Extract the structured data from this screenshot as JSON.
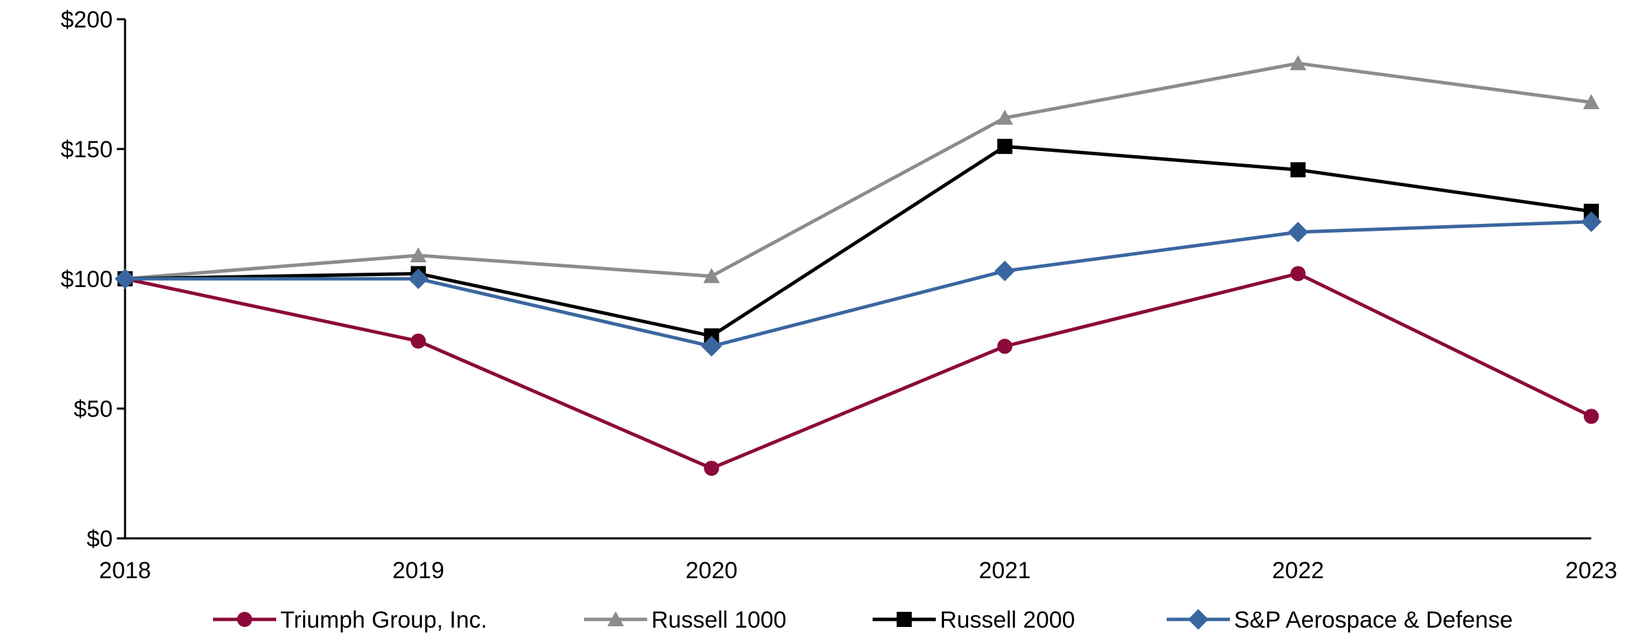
{
  "chart_data": {
    "type": "line",
    "title": "",
    "xlabel": "",
    "ylabel": "",
    "categories": [
      "2018",
      "2019",
      "2020",
      "2021",
      "2022",
      "2023"
    ],
    "ylim": [
      0,
      200
    ],
    "yticks": [
      0,
      50,
      100,
      150,
      200
    ],
    "ytick_labels": [
      "$0",
      "$50",
      "$100",
      "$150",
      "$200"
    ],
    "grid": false,
    "legend_position": "bottom",
    "series": [
      {
        "name": "Triumph Group, Inc.",
        "color": "#8B0A3A",
        "marker": "circle",
        "values": [
          100,
          76,
          27,
          74,
          102,
          47
        ]
      },
      {
        "name": "Russell 1000",
        "color": "#8C8C8C",
        "marker": "triangle",
        "values": [
          100,
          109,
          101,
          162,
          183,
          168
        ]
      },
      {
        "name": "Russell 2000",
        "color": "#000000",
        "marker": "square",
        "values": [
          100,
          102,
          78,
          151,
          142,
          126
        ]
      },
      {
        "name": "S&P Aerospace & Defense",
        "color": "#3A66A0",
        "marker": "diamond",
        "values": [
          100,
          100,
          74,
          103,
          118,
          122
        ]
      }
    ]
  }
}
